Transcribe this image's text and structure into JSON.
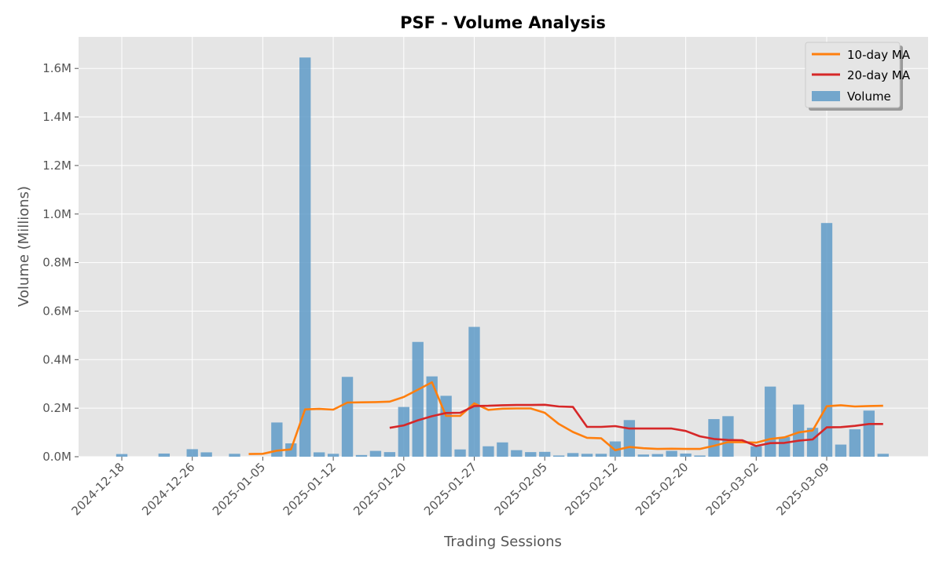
{
  "chart_data": {
    "type": "bar",
    "title": "PSF - Volume Analysis",
    "xlabel": "Trading Sessions",
    "ylabel": "Volume (Millions)",
    "ylim": [
      0,
      1.73
    ],
    "yticks": [
      "0.0M",
      "0.2M",
      "0.4M",
      "0.6M",
      "0.8M",
      "1.0M",
      "1.2M",
      "1.4M",
      "1.6M"
    ],
    "ytick_values": [
      0,
      0.2,
      0.4,
      0.6,
      0.8,
      1.0,
      1.2,
      1.4,
      1.6
    ],
    "xtick_labels": [
      {
        "session": 0,
        "label": "2024-12-18"
      },
      {
        "session": 5,
        "label": "2024-12-26"
      },
      {
        "session": 10,
        "label": "2025-01-05"
      },
      {
        "session": 15,
        "label": "2025-01-12"
      },
      {
        "session": 20,
        "label": "2025-01-20"
      },
      {
        "session": 25,
        "label": "2025-01-27"
      },
      {
        "session": 30,
        "label": "2025-02-05"
      },
      {
        "session": 35,
        "label": "2025-02-12"
      },
      {
        "session": 40,
        "label": "2025-02-20"
      },
      {
        "session": 45,
        "label": "2025-03-02"
      },
      {
        "session": 50,
        "label": "2025-03-09"
      }
    ],
    "grid": true,
    "legend_position": "top-right",
    "series": [
      {
        "name": "Volume",
        "kind": "bar",
        "color": "#5f9bc8",
        "values": [
          0.011,
          0.0,
          0.0,
          0.013,
          0.0,
          0.031,
          0.018,
          0.0,
          0.012,
          0.0,
          0.0,
          0.141,
          0.055,
          1.645,
          0.018,
          0.012,
          0.329,
          0.007,
          0.024,
          0.019,
          0.205,
          0.473,
          0.331,
          0.251,
          0.03,
          0.535,
          0.043,
          0.059,
          0.027,
          0.019,
          0.02,
          0.005,
          0.015,
          0.012,
          0.012,
          0.063,
          0.151,
          0.009,
          0.011,
          0.024,
          0.013,
          0.005,
          0.155,
          0.167,
          0.0,
          0.043,
          0.289,
          0.081,
          0.215,
          0.119,
          0.963,
          0.05,
          0.113,
          0.19,
          0.012
        ]
      },
      {
        "name": "10-day MA",
        "kind": "line",
        "color": "#ff7f0e",
        "values": [
          null,
          null,
          null,
          null,
          null,
          null,
          null,
          null,
          null,
          0.011,
          0.012,
          0.025,
          0.03,
          0.195,
          0.197,
          0.194,
          0.223,
          0.224,
          0.225,
          0.227,
          0.246,
          0.276,
          0.307,
          0.168,
          0.168,
          0.22,
          0.193,
          0.198,
          0.199,
          0.199,
          0.181,
          0.135,
          0.102,
          0.078,
          0.076,
          0.027,
          0.04,
          0.035,
          0.032,
          0.033,
          0.032,
          0.032,
          0.045,
          0.06,
          0.06,
          0.058,
          0.073,
          0.08,
          0.1,
          0.108,
          0.208,
          0.212,
          0.207,
          0.209,
          0.21
        ]
      },
      {
        "name": "20-day MA",
        "kind": "line",
        "color": "#d62728",
        "values": [
          null,
          null,
          null,
          null,
          null,
          null,
          null,
          null,
          null,
          null,
          null,
          null,
          null,
          null,
          null,
          null,
          null,
          null,
          null,
          0.119,
          0.129,
          0.15,
          0.167,
          0.18,
          0.181,
          0.209,
          0.21,
          0.212,
          0.213,
          0.213,
          0.214,
          0.207,
          0.205,
          0.123,
          0.123,
          0.126,
          0.116,
          0.116,
          0.116,
          0.116,
          0.106,
          0.084,
          0.073,
          0.069,
          0.068,
          0.044,
          0.056,
          0.057,
          0.066,
          0.071,
          0.121,
          0.122,
          0.127,
          0.135,
          0.135
        ]
      }
    ]
  }
}
